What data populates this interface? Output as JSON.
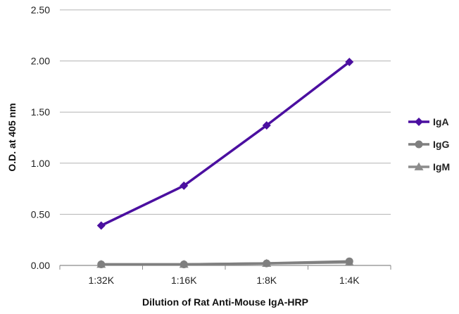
{
  "chart_data": {
    "type": "line",
    "title": "",
    "xlabel": "Dilution of Rat Anti-Mouse IgA-HRP",
    "ylabel": "O.D. at 405 nm",
    "categories": [
      "1:32K",
      "1:16K",
      "1:8K",
      "1:4K"
    ],
    "ylim": [
      0,
      2.5
    ],
    "yticks": [
      "0.00",
      "0.50",
      "1.00",
      "1.50",
      "2.00",
      "2.50"
    ],
    "grid": "horizontal",
    "legend_position": "right",
    "series": [
      {
        "name": "IgA",
        "values": [
          0.39,
          0.78,
          1.37,
          1.99
        ],
        "color": "#4b0fa0",
        "marker": "diamond"
      },
      {
        "name": "IgG",
        "values": [
          0.01,
          0.01,
          0.02,
          0.04
        ],
        "color": "#7f7f7f",
        "marker": "circle"
      },
      {
        "name": "IgM",
        "values": [
          0.01,
          0.01,
          0.02,
          0.03
        ],
        "color": "#8c8c8c",
        "marker": "triangle"
      }
    ]
  }
}
